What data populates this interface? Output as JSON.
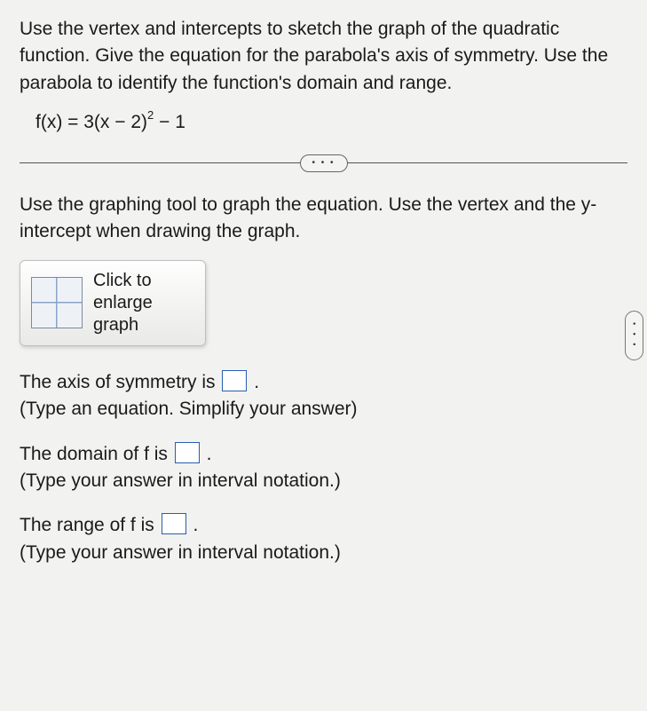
{
  "problem": {
    "intro": "Use the vertex and intercepts to sketch the graph of the quadratic function. Give the equation for the parabola's axis of symmetry. Use the parabola to identify the function's domain and range.",
    "formula_prefix": "f(x) = 3(x − 2)",
    "formula_exp": "2",
    "formula_suffix": " − 1"
  },
  "divider": {
    "dots": "• • •"
  },
  "graph": {
    "instruction": "Use the graphing tool to graph the equation. Use the vertex and the y-intercept when drawing the graph.",
    "button_line1": "Click to",
    "button_line2": "enlarge",
    "button_line3": "graph"
  },
  "questions": {
    "axis": {
      "pre": "The axis of symmetry is ",
      "post": ".",
      "hint": "(Type an equation. Simplify your answer)"
    },
    "domain": {
      "pre": "The domain of f is ",
      "post": ".",
      "hint": "(Type your answer in interval notation.)"
    },
    "range": {
      "pre": "The range of f is ",
      "post": ".",
      "hint": "(Type your answer in interval notation.)"
    }
  },
  "side": {
    "dots": "• • •"
  }
}
